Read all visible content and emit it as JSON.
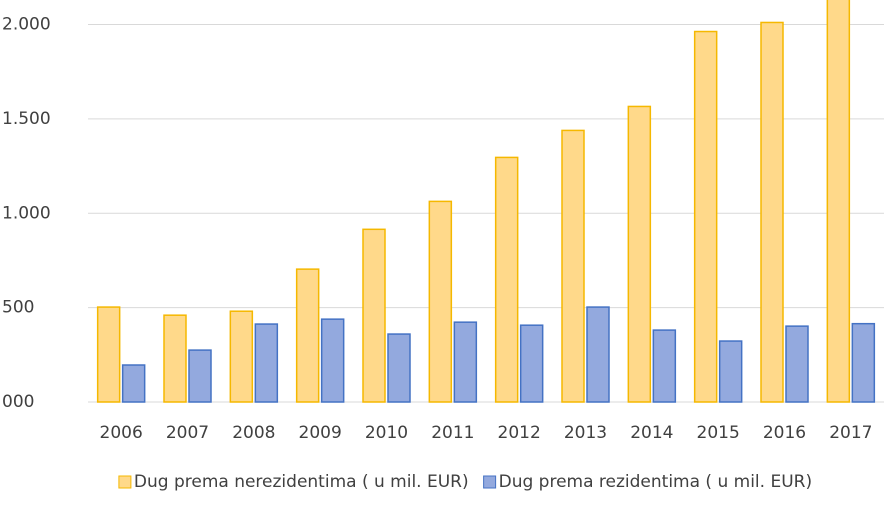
{
  "chart_data": {
    "type": "bar",
    "categories": [
      "2006",
      "2007",
      "2008",
      "2009",
      "2010",
      "2011",
      "2012",
      "2013",
      "2014",
      "2015",
      "2016",
      "2017"
    ],
    "series": [
      {
        "name": "Dug prema nerezidentima ( u mil. EUR)",
        "color": "#ffd98a",
        "stroke": "#f5b800",
        "values": [
          503,
          460,
          481,
          704,
          915,
          1063,
          1296,
          1439,
          1566,
          1963,
          2011,
          2150
        ]
      },
      {
        "name": "Dug prema rezidentima ( u mil. EUR)",
        "color": "#93a9de",
        "stroke": "#4472c4",
        "values": [
          196,
          275,
          413,
          439,
          360,
          423,
          407,
          503,
          381,
          323,
          402,
          415
        ]
      }
    ],
    "ylim": [
      0,
      2130
    ],
    "yticks": [
      {
        "value": 0,
        "label": "000"
      },
      500,
      {
        "value": 1000,
        "label": "1.000"
      },
      {
        "value": 1500,
        "label": "1.500"
      },
      {
        "value": 2000,
        "label": "2.000"
      }
    ],
    "grid": true,
    "legend": "bottom"
  }
}
